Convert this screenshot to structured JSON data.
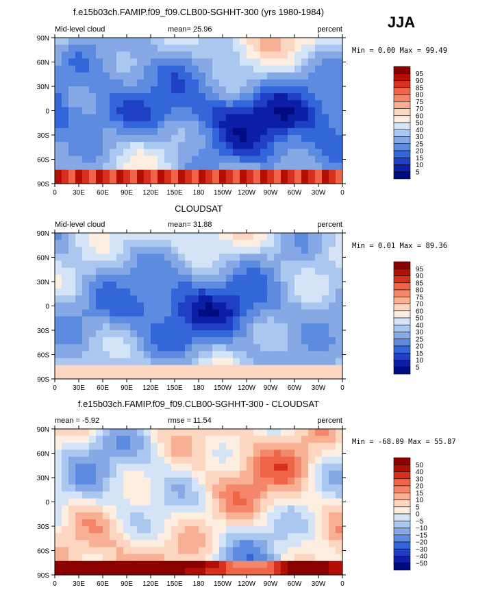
{
  "season_label": "JJA",
  "chart_data": [
    {
      "type": "heatmap",
      "title": "f.e15b03ch.FAMIP.f09_f09.CLB00-SGHHT-300 (yrs 1980-1984)",
      "left_label": "Mid-level cloud",
      "center_label": "mean=   25.96",
      "right_label": "percent",
      "min_max": "Min =    0.00 Max =   99.49",
      "x_ticks": [
        "0",
        "30E",
        "60E",
        "90E",
        "120E",
        "150E",
        "180",
        "150W",
        "120W",
        "90W",
        "60W",
        "30W",
        "0"
      ],
      "y_ticks": [
        "90N",
        "60N",
        "30N",
        "0",
        "30S",
        "60S",
        "90S"
      ],
      "levels": [
        "95",
        "90",
        "85",
        "80",
        "75",
        "70",
        "60",
        "50",
        "40",
        "30",
        "25",
        "20",
        "15",
        "10",
        "5"
      ],
      "colors": [
        "#8b0000",
        "#b40f05",
        "#d7301f",
        "#ef6548",
        "#f4876b",
        "#f8b094",
        "#fcd6c0",
        "#fdeee2",
        "#d5e3f7",
        "#aac7ef",
        "#86a9e6",
        "#5d8be0",
        "#3366d9",
        "#1f3fc4",
        "#0d1ea6",
        "#000b80"
      ]
    },
    {
      "type": "heatmap",
      "title": "CLOUDSAT",
      "left_label": "Mid-level cloud",
      "center_label": "mean=   31.88",
      "right_label": "percent",
      "min_max": "Min =    0.01 Max =   89.36",
      "x_ticks": [
        "0",
        "30E",
        "60E",
        "90E",
        "120E",
        "150E",
        "180",
        "150W",
        "120W",
        "90W",
        "60W",
        "30W",
        "0"
      ],
      "y_ticks": [
        "90N",
        "60N",
        "30N",
        "0",
        "30S",
        "60S",
        "90S"
      ],
      "levels": [
        "95",
        "90",
        "85",
        "80",
        "75",
        "70",
        "60",
        "50",
        "40",
        "30",
        "25",
        "20",
        "15",
        "10",
        "5"
      ],
      "colors": [
        "#8b0000",
        "#b40f05",
        "#d7301f",
        "#ef6548",
        "#f4876b",
        "#f8b094",
        "#fcd6c0",
        "#fdeee2",
        "#d5e3f7",
        "#aac7ef",
        "#86a9e6",
        "#5d8be0",
        "#3366d9",
        "#1f3fc4",
        "#0d1ea6",
        "#000b80"
      ]
    },
    {
      "type": "heatmap",
      "title": "f.e15b03ch.FAMIP.f09_f09.CLB00-SGHHT-300 - CLOUDSAT",
      "left_label": "mean =   -5.92",
      "center_label": "rmse =   11.54",
      "right_label": "percent",
      "min_max": "Min = -68.09 Max =   55.87",
      "x_ticks": [
        "0",
        "30E",
        "60E",
        "90E",
        "120E",
        "150E",
        "180",
        "150W",
        "120W",
        "90W",
        "60W",
        "30W",
        "0"
      ],
      "y_ticks": [
        "90N",
        "60N",
        "30N",
        "0",
        "30S",
        "60S",
        "90S"
      ],
      "levels": [
        "50",
        "40",
        "30",
        "20",
        "15",
        "10",
        "5",
        "0",
        "−5",
        "−10",
        "−15",
        "−20",
        "−30",
        "−40",
        "−50"
      ],
      "colors": [
        "#8b0000",
        "#b40f05",
        "#d7301f",
        "#ef6548",
        "#f4876b",
        "#f8b094",
        "#fcd6c0",
        "#fdeee2",
        "#d5e3f7",
        "#aac7ef",
        "#86a9e6",
        "#5d8be0",
        "#3366d9",
        "#1f3fc4",
        "#0d1ea6",
        "#000b80"
      ]
    }
  ]
}
